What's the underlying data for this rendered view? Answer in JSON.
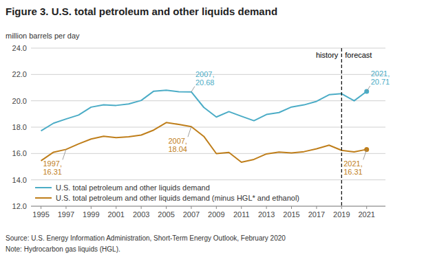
{
  "chart_data": {
    "type": "line",
    "title": "Figure 3. U.S. total petroleum and other liquids demand",
    "y_label": "million barrels  per day",
    "x": [
      1995,
      1996,
      1997,
      1998,
      1999,
      2000,
      2001,
      2002,
      2003,
      2004,
      2005,
      2006,
      2007,
      2008,
      2009,
      2010,
      2011,
      2012,
      2013,
      2014,
      2015,
      2016,
      2017,
      2018,
      2019,
      2020,
      2021
    ],
    "series": [
      {
        "name": "U.S. total petroleum and other liquids demand",
        "color": "#4bacc6",
        "values": [
          17.72,
          18.3,
          18.62,
          18.92,
          19.52,
          19.7,
          19.65,
          19.76,
          20.03,
          20.73,
          20.8,
          20.69,
          20.68,
          19.5,
          18.77,
          19.18,
          18.83,
          18.49,
          18.96,
          19.11,
          19.53,
          19.69,
          19.96,
          20.46,
          20.54,
          20.0,
          20.71
        ]
      },
      {
        "name": "U.S. total petroleum and other liquids demand (minus HGL* and ethanol)",
        "color": "#bf7e1a",
        "values": [
          15.45,
          16.1,
          16.31,
          16.73,
          17.1,
          17.31,
          17.2,
          17.27,
          17.4,
          17.78,
          18.35,
          18.21,
          18.04,
          17.3,
          15.99,
          16.08,
          15.34,
          15.55,
          15.97,
          16.11,
          16.05,
          16.14,
          16.36,
          16.63,
          16.24,
          16.12,
          16.31
        ]
      }
    ],
    "xlim": [
      1994.2,
      2022.5
    ],
    "xticks": [
      1995,
      1997,
      1999,
      2001,
      2003,
      2005,
      2007,
      2009,
      2011,
      2013,
      2015,
      2017,
      2019,
      2021
    ],
    "ylim": [
      12.0,
      24.0
    ],
    "yticks": [
      {
        "value": 12.0,
        "label": "12.0"
      },
      {
        "value": 14.0,
        "label": "14.0"
      },
      {
        "value": 16.0,
        "label": "16.0"
      },
      {
        "value": 18.0,
        "label": "18.0"
      },
      {
        "value": 20.0,
        "label": "20.0"
      },
      {
        "value": 22.0,
        "label": "22.0"
      },
      {
        "value": 24.0,
        "label": "24.0"
      }
    ],
    "grid": true,
    "legend": "lower left",
    "divider": {
      "x": 2019,
      "labels": [
        "history",
        "forecast"
      ],
      "line_style": "dashed"
    },
    "annotations": [
      {
        "text": "2007,\n20.68",
        "x": 2007,
        "y": 20.68,
        "series": 0
      },
      {
        "text": "2007,\n18.04",
        "x": 2007,
        "y": 18.04,
        "series": 1
      },
      {
        "text": "1997,\n16.31",
        "x": 1997,
        "y": 16.31,
        "series": 1
      },
      {
        "text": "2021,\n20.71",
        "x": 2021,
        "y": 20.71,
        "series": 0,
        "marker": "circle"
      },
      {
        "text": "2021,\n16.31",
        "x": 2021,
        "y": 16.31,
        "series": 1,
        "marker": "circle"
      }
    ],
    "source": "Source: U.S. Energy Information Administration, Short-Term Energy Outlook, February 2020",
    "note": "Note: Hydrocarbon gas liquids (HGL)."
  }
}
